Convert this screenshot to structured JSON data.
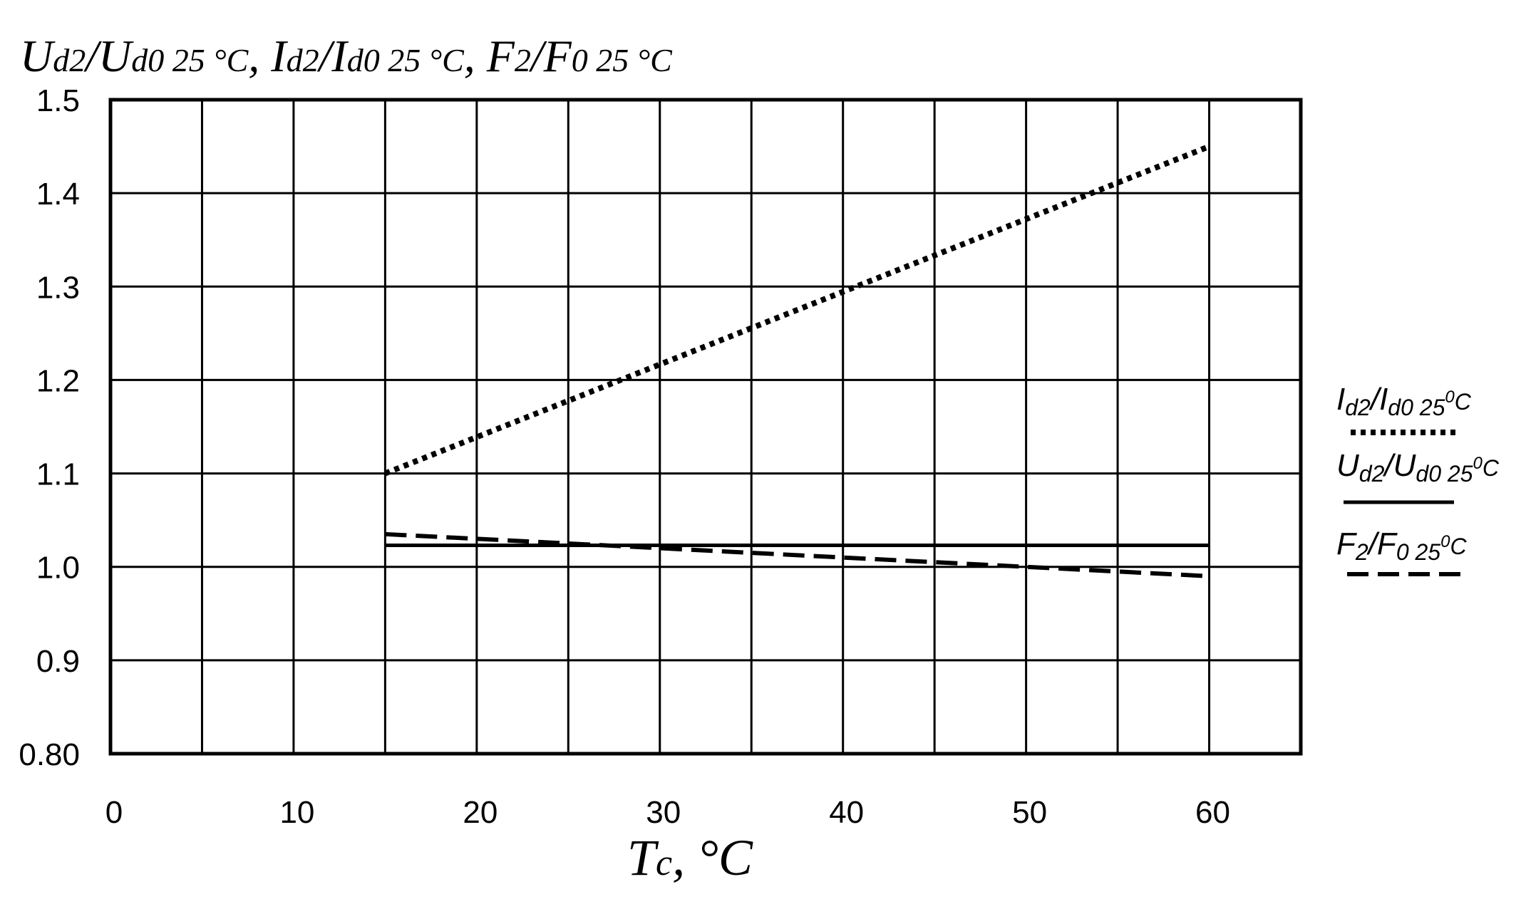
{
  "chart_data": {
    "type": "line",
    "ylabel": {
      "parts": [
        {
          "t": "U",
          "sub": "d2",
          "suffix": "/"
        },
        {
          "t": "U",
          "sub": "d0 25 °C",
          "suffix": ", "
        },
        {
          "t": "I",
          "sub": "d2",
          "suffix": "/"
        },
        {
          "t": "I",
          "sub": "d0 25 °C",
          "suffix": ", "
        },
        {
          "t": "F",
          "sub": "2",
          "suffix": "/"
        },
        {
          "t": "F",
          "sub": "0 25 °C",
          "suffix": ""
        }
      ]
    },
    "xlabel": {
      "main": "T",
      "sub": "c",
      "suffix": ", °C"
    },
    "xlim": [
      0,
      65
    ],
    "ylim": [
      0.8,
      1.5
    ],
    "xticks": [
      0,
      10,
      20,
      30,
      40,
      50,
      60
    ],
    "yticks": [
      "0.80",
      "0.9",
      "1.0",
      "1.1",
      "1.2",
      "1.3",
      "1.4",
      "1.5"
    ],
    "grid": true,
    "legend_position": "right",
    "series": [
      {
        "name": "Id2/Id0 25°C",
        "name_parts": {
          "a": "I",
          "a_sub": "d2",
          "b": "I",
          "b_sub": "d0 25",
          "b_sup": "0",
          "unit": "C"
        },
        "style": "dotted",
        "x": [
          15,
          60
        ],
        "y": [
          1.1,
          1.45
        ]
      },
      {
        "name": "Ud2/Ud0 25°C",
        "name_parts": {
          "a": "U",
          "a_sub": "d2",
          "b": "U",
          "b_sub": "d0 25",
          "b_sup": "0",
          "unit": "C"
        },
        "style": "solid",
        "x": [
          15,
          60
        ],
        "y": [
          1.023,
          1.023
        ]
      },
      {
        "name": "F2/F0 25°C",
        "name_parts": {
          "a": "F",
          "a_sub": "2",
          "b": "F",
          "b_sub": "0 25",
          "b_sup": "0",
          "unit": "C"
        },
        "style": "dashed",
        "x": [
          15,
          60
        ],
        "y": [
          1.035,
          0.99
        ]
      }
    ]
  }
}
